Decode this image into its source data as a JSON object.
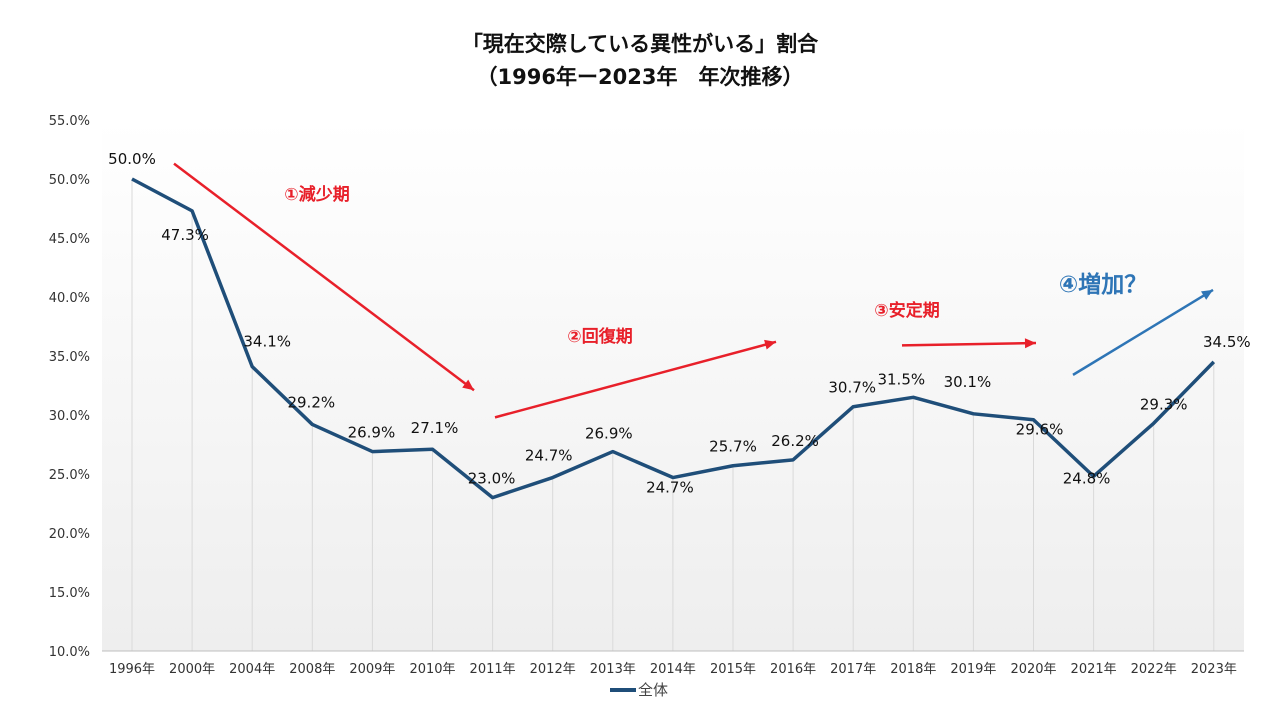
{
  "chart_data": {
    "type": "line",
    "title": "「現在交際している異性がいる」割合",
    "subtitle": "（1996年ー2023年　年次推移）",
    "categories": [
      "1996年",
      "2000年",
      "2004年",
      "2008年",
      "2009年",
      "2010年",
      "2011年",
      "2012年",
      "2013年",
      "2014年",
      "2015年",
      "2016年",
      "2017年",
      "2018年",
      "2019年",
      "2020年",
      "2021年",
      "2022年",
      "2023年"
    ],
    "series": [
      {
        "name": "全体",
        "color": "#1f4e79",
        "values": [
          50.0,
          47.3,
          34.1,
          29.2,
          26.9,
          27.1,
          23.0,
          24.7,
          26.9,
          24.7,
          25.7,
          26.2,
          30.7,
          31.5,
          30.1,
          29.6,
          24.8,
          29.3,
          34.5
        ],
        "labels": [
          "50.0%",
          "47.3%",
          "34.1%",
          "29.2%",
          "26.9%",
          "27.1%",
          "23.0%",
          "24.7%",
          "26.9%",
          "24.7%",
          "25.7%",
          "26.2%",
          "30.7%",
          "31.5%",
          "30.1%",
          "29.6%",
          "24.8%",
          "29.3%",
          "34.5%"
        ]
      }
    ],
    "ylim": [
      10.0,
      55.0
    ],
    "yticks": [
      10.0,
      15.0,
      20.0,
      25.0,
      30.0,
      35.0,
      40.0,
      45.0,
      50.0,
      55.0
    ],
    "ytick_labels": [
      "10.0%",
      "15.0%",
      "20.0%",
      "25.0%",
      "30.0%",
      "35.0%",
      "40.0%",
      "45.0%",
      "50.0%",
      "55.0%"
    ],
    "xlabel": "",
    "ylabel": "",
    "legend": {
      "entries": [
        "全体"
      ],
      "placement": "bottom-center"
    },
    "annotations": [
      {
        "text": "①減少期",
        "color": "#e8202a",
        "from_category": "2000年",
        "from_value": 51.3,
        "to_category": "2011年",
        "to_value": 32.1
      },
      {
        "text": "②回復期",
        "color": "#e8202a",
        "from_category": "2011年",
        "from_value": 29.8,
        "to_category": "2018年",
        "to_value": 36.2
      },
      {
        "text": "③安定期",
        "color": "#e8202a",
        "from_category": "2018年",
        "from_value": 35.9,
        "to_category": "2021年",
        "to_value": 36.1
      },
      {
        "text": "④増加？",
        "color": "#2e75b6",
        "from_category": "2021年",
        "from_value": 33.4,
        "to_category": "2023年",
        "to_value": 40.6
      }
    ]
  }
}
